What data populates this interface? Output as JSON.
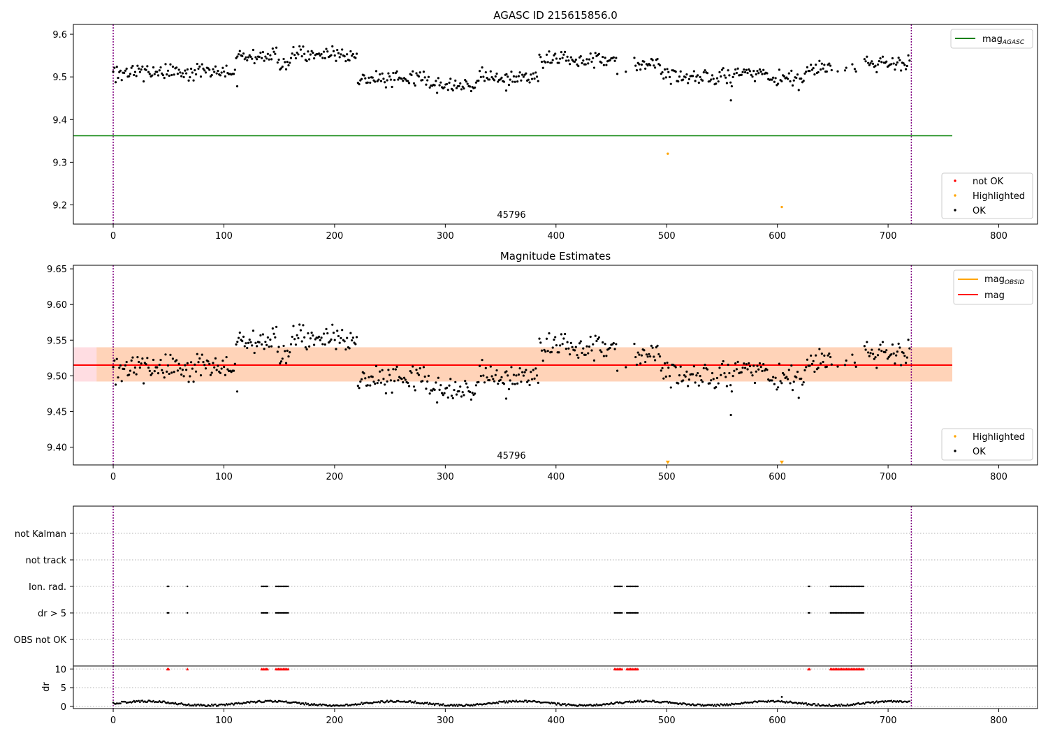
{
  "figure": {
    "title_top": "AGASC ID 215615856.0",
    "title_mid": "Magnitude Estimates",
    "obsid_label": "45796"
  },
  "colors": {
    "ok": "#000000",
    "highlighted": "#ffa500",
    "not_ok": "#ff0000",
    "mag_agasc": "#008000",
    "mag": "#ff0000",
    "mag_obsid": "#ffa500",
    "band_obsid": "#ffd2b4",
    "band_mag": "#ffdde2",
    "vline": "#800080"
  },
  "chart_data": [
    {
      "type": "scatter",
      "title": "AGASC ID 215615856.0",
      "xlim": [
        -36,
        835
      ],
      "ylim": [
        9.155,
        9.623
      ],
      "xticks": [
        0,
        100,
        200,
        300,
        400,
        500,
        600,
        700,
        800
      ],
      "yticks": [
        9.2,
        9.3,
        9.4,
        9.5,
        9.6
      ],
      "vlines": [
        0,
        721
      ],
      "annotation": {
        "text": "45796",
        "x": 360,
        "y": 9.17
      },
      "hlines": [
        {
          "name": "mag_AGASC",
          "y": 9.362,
          "x": [
            -36,
            758
          ],
          "color": "green"
        }
      ],
      "legend_upper": {
        "position": "upper right",
        "entries": [
          "mag_AGASC"
        ],
        "entry_main": "mag",
        "entry_sub": "AGASC"
      },
      "legend_lower": {
        "position": "lower right",
        "entries": [
          "not OK",
          "Highlighted",
          "OK"
        ]
      },
      "series": [
        {
          "name": "Highlighted",
          "color": "orange",
          "points": [
            [
              501,
              9.32
            ],
            [
              604,
              9.195
            ]
          ]
        },
        {
          "name": "OK",
          "color": "black",
          "description": "~650 points from t=0 to 720, magnitudes mostly 9.47-9.58, mean ~9.515; gaps near 460-470 and 650-678; outlier 9.445 at t=558"
        }
      ]
    },
    {
      "type": "scatter",
      "title": "Magnitude Estimates",
      "xlim": [
        -36,
        835
      ],
      "ylim": [
        9.375,
        9.655
      ],
      "xticks": [
        0,
        100,
        200,
        300,
        400,
        500,
        600,
        700,
        800
      ],
      "yticks": [
        9.4,
        9.45,
        9.5,
        9.55,
        9.6,
        9.65
      ],
      "vlines": [
        0,
        721
      ],
      "annotation": {
        "text": "45796",
        "x": 360,
        "y": 9.385
      },
      "hlines": [
        {
          "name": "mag_OBSID",
          "y": 9.515,
          "x": [
            -36,
            758
          ],
          "color": "orange"
        },
        {
          "name": "mag",
          "y": 9.515,
          "x": [
            -36,
            758
          ],
          "color": "red"
        }
      ],
      "bands": [
        {
          "name": "mag band",
          "y": [
            9.492,
            9.54
          ],
          "x": [
            -36,
            758
          ]
        },
        {
          "name": "mag_OBSID band",
          "y": [
            9.492,
            9.54
          ],
          "x": [
            -15,
            758
          ]
        }
      ],
      "legend_upper": {
        "position": "upper right",
        "entries": [
          "mag_OBSID",
          "mag"
        ],
        "entry1_main": "mag",
        "entry1_sub": "OBSID",
        "entry2": "mag"
      },
      "legend_lower": {
        "position": "lower right",
        "entries": [
          "Highlighted",
          "OK"
        ]
      },
      "series": [
        {
          "name": "Highlighted",
          "color": "orange",
          "marker": "down-triangle",
          "points": [
            [
              501,
              9.378
            ],
            [
              604,
              9.378
            ]
          ]
        },
        {
          "name": "OK",
          "color": "black",
          "description": "same magnitude estimates as top panel"
        }
      ]
    },
    {
      "type": "scatter",
      "title": "",
      "xlim": [
        -36,
        835
      ],
      "xticks": [
        0,
        100,
        200,
        300,
        400,
        500,
        600,
        700,
        800
      ],
      "vlines": [
        0,
        721
      ],
      "flag_rows": [
        "not Kalman",
        "not track",
        "Ion. rad.",
        "dr > 5",
        "OBS not OK"
      ],
      "flag_points": {
        "Ion. rad.": [
          [
            49,
            51
          ],
          [
            67,
            68
          ],
          [
            134,
            140
          ],
          [
            147,
            158
          ],
          [
            453,
            460
          ],
          [
            464,
            474
          ],
          [
            628,
            630
          ],
          [
            648,
            678
          ]
        ],
        "dr > 5": [
          [
            49,
            51
          ],
          [
            67,
            68
          ],
          [
            134,
            140
          ],
          [
            147,
            158
          ],
          [
            453,
            460
          ],
          [
            464,
            474
          ],
          [
            628,
            630
          ],
          [
            648,
            678
          ]
        ]
      },
      "dr_panel": {
        "ylabel": "dr",
        "ylim": [
          -0.6,
          10.8
        ],
        "yticks": [
          0,
          5,
          10
        ],
        "clipped_red_at_10": [
          [
            49,
            51
          ],
          [
            67,
            68
          ],
          [
            134,
            140
          ],
          [
            147,
            158
          ],
          [
            453,
            460
          ],
          [
            464,
            474
          ],
          [
            628,
            630
          ],
          [
            648,
            678
          ]
        ],
        "description": "black points of dr between 0 and ~2.5 over t=0-720"
      }
    }
  ]
}
